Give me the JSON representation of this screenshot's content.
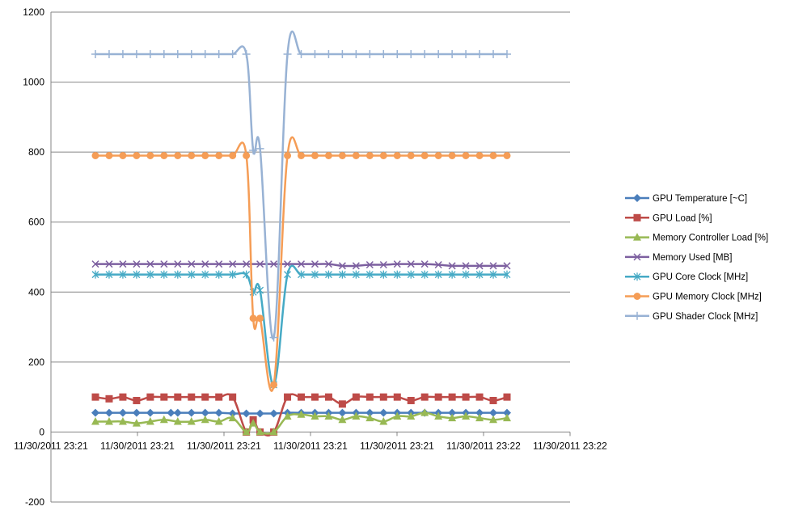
{
  "chart_data": {
    "type": "line",
    "title": "",
    "xlabel": "",
    "ylabel": "",
    "ylim": [
      -200,
      1200
    ],
    "y_ticks": [
      -200,
      0,
      200,
      400,
      600,
      800,
      1000,
      1200
    ],
    "grid": "horizontal",
    "legend_position": "right",
    "x_tick_labels": [
      "11/30/2011 23:21",
      "11/30/2011 23:21",
      "11/30/2011 23:21",
      "11/30/2011 23:21",
      "11/30/2011 23:21",
      "11/30/2011 23:22",
      "11/30/2011 23:22"
    ],
    "x_points": [
      1,
      1.33,
      1.67,
      2,
      2.33,
      2.67,
      3,
      3.45,
      3.67,
      4,
      4.33,
      4.67,
      5,
      6.33,
      6.67,
      7.33,
      7.67,
      8.22,
      8.67,
      9.6,
      10,
      10.33,
      10.67,
      11,
      11.33,
      11.67,
      12,
      12.33,
      12.67,
      13,
      13.33,
      13.67,
      14,
      14.33,
      14.67,
      15,
      15.33,
      15.67,
      16,
      16.33,
      16.67,
      17,
      17.33,
      17.67,
      18,
      18.33,
      18.67,
      19,
      19.33,
      19.67,
      20
    ],
    "series": [
      {
        "name": "GPU Temperature [~C]",
        "color": "#4a7ebb",
        "marker": "diamond",
        "points": [
          [
            1,
            55
          ],
          [
            2,
            55
          ],
          [
            3,
            55
          ],
          [
            4,
            55
          ],
          [
            5,
            55
          ],
          [
            6.5,
            55
          ],
          [
            7,
            55
          ],
          [
            8,
            55
          ],
          [
            9,
            55
          ],
          [
            10,
            55
          ],
          [
            11,
            53
          ],
          [
            12,
            53
          ],
          [
            13,
            53
          ],
          [
            14,
            53
          ],
          [
            15,
            55
          ],
          [
            16,
            55
          ],
          [
            17,
            55
          ],
          [
            18,
            55
          ],
          [
            19,
            55
          ],
          [
            20,
            55
          ],
          [
            21,
            55
          ],
          [
            22,
            55
          ],
          [
            23,
            55
          ],
          [
            24,
            55
          ],
          [
            25,
            55
          ],
          [
            26,
            55
          ],
          [
            27,
            55
          ],
          [
            28,
            55
          ],
          [
            29,
            55
          ],
          [
            30,
            55
          ],
          [
            31,
            55
          ]
        ]
      },
      {
        "name": "GPU Load [%]",
        "color": "#be4b48",
        "marker": "square",
        "points": [
          [
            1,
            100
          ],
          [
            2,
            95
          ],
          [
            3,
            100
          ],
          [
            4,
            90
          ],
          [
            5,
            100
          ],
          [
            6,
            100
          ],
          [
            7,
            100
          ],
          [
            8,
            100
          ],
          [
            9,
            100
          ],
          [
            10,
            100
          ],
          [
            11,
            100
          ],
          [
            12,
            0
          ],
          [
            12.5,
            35
          ],
          [
            13,
            0
          ],
          [
            14,
            0
          ],
          [
            15,
            100
          ],
          [
            16,
            100
          ],
          [
            17,
            100
          ],
          [
            18,
            100
          ],
          [
            19,
            80
          ],
          [
            20,
            100
          ],
          [
            21,
            100
          ],
          [
            22,
            100
          ],
          [
            23,
            100
          ],
          [
            24,
            90
          ],
          [
            25,
            100
          ],
          [
            26,
            100
          ],
          [
            27,
            100
          ],
          [
            28,
            100
          ],
          [
            29,
            100
          ],
          [
            30,
            90
          ],
          [
            31,
            100
          ]
        ]
      },
      {
        "name": "Memory Controller Load [%]",
        "color": "#98b954",
        "marker": "triangle",
        "points": [
          [
            1,
            30
          ],
          [
            2,
            30
          ],
          [
            3,
            30
          ],
          [
            4,
            25
          ],
          [
            5,
            30
          ],
          [
            6,
            35
          ],
          [
            7,
            30
          ],
          [
            8,
            30
          ],
          [
            9,
            35
          ],
          [
            10,
            30
          ],
          [
            11,
            40
          ],
          [
            12,
            0
          ],
          [
            12.5,
            25
          ],
          [
            13,
            0
          ],
          [
            14,
            0
          ],
          [
            15,
            45
          ],
          [
            16,
            50
          ],
          [
            17,
            45
          ],
          [
            18,
            45
          ],
          [
            19,
            35
          ],
          [
            20,
            45
          ],
          [
            21,
            40
          ],
          [
            22,
            30
          ],
          [
            23,
            45
          ],
          [
            24,
            45
          ],
          [
            25,
            55
          ],
          [
            26,
            45
          ],
          [
            27,
            40
          ],
          [
            28,
            45
          ],
          [
            29,
            40
          ],
          [
            30,
            35
          ],
          [
            31,
            40
          ]
        ]
      },
      {
        "name": "Memory Used [MB]",
        "color": "#7d60a0",
        "marker": "x",
        "points": [
          [
            1,
            480
          ],
          [
            2,
            480
          ],
          [
            3,
            480
          ],
          [
            4,
            480
          ],
          [
            5,
            480
          ],
          [
            6,
            480
          ],
          [
            7,
            480
          ],
          [
            8,
            480
          ],
          [
            9,
            480
          ],
          [
            10,
            480
          ],
          [
            11,
            480
          ],
          [
            12,
            480
          ],
          [
            13,
            480
          ],
          [
            14,
            480
          ],
          [
            15,
            480
          ],
          [
            16,
            480
          ],
          [
            17,
            480
          ],
          [
            18,
            480
          ],
          [
            19,
            475
          ],
          [
            20,
            475
          ],
          [
            21,
            478
          ],
          [
            22,
            478
          ],
          [
            23,
            480
          ],
          [
            24,
            480
          ],
          [
            25,
            480
          ],
          [
            26,
            478
          ],
          [
            27,
            475
          ],
          [
            28,
            475
          ],
          [
            29,
            475
          ],
          [
            30,
            475
          ],
          [
            31,
            475
          ]
        ]
      },
      {
        "name": "GPU Core Clock [MHz]",
        "color": "#46aac5",
        "marker": "star",
        "points": [
          [
            1,
            450
          ],
          [
            2,
            450
          ],
          [
            3,
            450
          ],
          [
            4,
            450
          ],
          [
            5,
            450
          ],
          [
            6,
            450
          ],
          [
            7,
            450
          ],
          [
            8,
            450
          ],
          [
            9,
            450
          ],
          [
            10,
            450
          ],
          [
            11,
            450
          ],
          [
            12,
            450
          ],
          [
            12.5,
            400
          ],
          [
            13,
            405
          ],
          [
            14,
            135
          ],
          [
            15,
            450
          ],
          [
            16,
            450
          ],
          [
            17,
            450
          ],
          [
            18,
            450
          ],
          [
            19,
            450
          ],
          [
            20,
            450
          ],
          [
            21,
            450
          ],
          [
            22,
            450
          ],
          [
            23,
            450
          ],
          [
            24,
            450
          ],
          [
            25,
            450
          ],
          [
            26,
            450
          ],
          [
            27,
            450
          ],
          [
            28,
            450
          ],
          [
            29,
            450
          ],
          [
            30,
            450
          ],
          [
            31,
            450
          ]
        ]
      },
      {
        "name": "GPU Memory Clock [MHz]",
        "color": "#f59d56",
        "marker": "circle",
        "points": [
          [
            1,
            790
          ],
          [
            2,
            790
          ],
          [
            3,
            790
          ],
          [
            4,
            790
          ],
          [
            5,
            790
          ],
          [
            6,
            790
          ],
          [
            7,
            790
          ],
          [
            8,
            790
          ],
          [
            9,
            790
          ],
          [
            10,
            790
          ],
          [
            11,
            790
          ],
          [
            12,
            790
          ],
          [
            12.5,
            325
          ],
          [
            13,
            325
          ],
          [
            14,
            135
          ],
          [
            15,
            790
          ],
          [
            16,
            790
          ],
          [
            17,
            790
          ],
          [
            18,
            790
          ],
          [
            19,
            790
          ],
          [
            20,
            790
          ],
          [
            21,
            790
          ],
          [
            22,
            790
          ],
          [
            23,
            790
          ],
          [
            24,
            790
          ],
          [
            25,
            790
          ],
          [
            26,
            790
          ],
          [
            27,
            790
          ],
          [
            28,
            790
          ],
          [
            29,
            790
          ],
          [
            30,
            790
          ],
          [
            31,
            790
          ]
        ]
      },
      {
        "name": "GPU Shader Clock [MHz]",
        "color": "#98b2d4",
        "marker": "plus",
        "points": [
          [
            1,
            1080
          ],
          [
            2,
            1080
          ],
          [
            3,
            1080
          ],
          [
            4,
            1080
          ],
          [
            5,
            1080
          ],
          [
            6,
            1080
          ],
          [
            7,
            1080
          ],
          [
            8,
            1080
          ],
          [
            9,
            1080
          ],
          [
            10,
            1080
          ],
          [
            11,
            1080
          ],
          [
            12,
            1080
          ],
          [
            12.5,
            805
          ],
          [
            13,
            810
          ],
          [
            14,
            270
          ],
          [
            15,
            1080
          ],
          [
            16,
            1080
          ],
          [
            17,
            1080
          ],
          [
            18,
            1080
          ],
          [
            19,
            1080
          ],
          [
            20,
            1080
          ],
          [
            21,
            1080
          ],
          [
            22,
            1080
          ],
          [
            23,
            1080
          ],
          [
            24,
            1080
          ],
          [
            25,
            1080
          ],
          [
            26,
            1080
          ],
          [
            27,
            1080
          ],
          [
            28,
            1080
          ],
          [
            29,
            1080
          ],
          [
            30,
            1080
          ],
          [
            31,
            1080
          ]
        ]
      }
    ]
  }
}
